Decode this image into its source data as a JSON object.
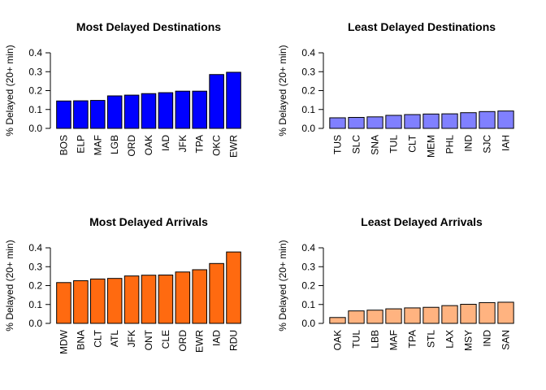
{
  "chart_data": [
    {
      "type": "bar",
      "title": "Most Delayed Destinations",
      "ylabel": "% Delayed (20+ min)",
      "xlabel": "",
      "ylim": [
        0,
        0.4
      ],
      "yticks": [
        "0.0",
        "0.1",
        "0.2",
        "0.3",
        "0.4"
      ],
      "color": "#0000ff",
      "categories": [
        "BOS",
        "ELP",
        "MAF",
        "LGB",
        "ORD",
        "OAK",
        "IAD",
        "JFK",
        "TPA",
        "OKC",
        "EWR"
      ],
      "values": [
        0.145,
        0.146,
        0.148,
        0.172,
        0.176,
        0.184,
        0.189,
        0.197,
        0.197,
        0.285,
        0.297
      ]
    },
    {
      "type": "bar",
      "title": "Least Delayed Destinations",
      "ylabel": "% Delayed (20+ min)",
      "xlabel": "",
      "ylim": [
        0,
        0.4
      ],
      "yticks": [
        "0.0",
        "0.1",
        "0.2",
        "0.3",
        "0.4"
      ],
      "color": "#8080ff",
      "categories": [
        "TUS",
        "SLC",
        "SNA",
        "TUL",
        "CLT",
        "MEM",
        "PHL",
        "IND",
        "SJC",
        "IAH"
      ],
      "values": [
        0.056,
        0.058,
        0.061,
        0.069,
        0.073,
        0.076,
        0.077,
        0.083,
        0.089,
        0.092
      ]
    },
    {
      "type": "bar",
      "title": "Most Delayed Arrivals",
      "ylabel": "% Delayed (20+ min)",
      "xlabel": "",
      "ylim": [
        0,
        0.4
      ],
      "yticks": [
        "0.0",
        "0.1",
        "0.2",
        "0.3",
        "0.4"
      ],
      "color": "#ff6a10",
      "categories": [
        "MDW",
        "BNA",
        "CLT",
        "ATL",
        "JFK",
        "ONT",
        "CLE",
        "ORD",
        "EWR",
        "IAD",
        "RDU"
      ],
      "values": [
        0.216,
        0.226,
        0.235,
        0.238,
        0.251,
        0.255,
        0.256,
        0.272,
        0.284,
        0.317,
        0.378
      ]
    },
    {
      "type": "bar",
      "title": "Least Delayed Arrivals",
      "ylabel": "% Delayed (20+ min)",
      "xlabel": "",
      "ylim": [
        0,
        0.4
      ],
      "yticks": [
        "0.0",
        "0.1",
        "0.2",
        "0.3",
        "0.4"
      ],
      "color": "#ffb380",
      "categories": [
        "OAK",
        "TUL",
        "LBB",
        "MAF",
        "TPA",
        "STL",
        "LAX",
        "MSY",
        "IND",
        "SAN"
      ],
      "values": [
        0.031,
        0.066,
        0.07,
        0.077,
        0.082,
        0.085,
        0.094,
        0.101,
        0.11,
        0.112
      ]
    }
  ]
}
